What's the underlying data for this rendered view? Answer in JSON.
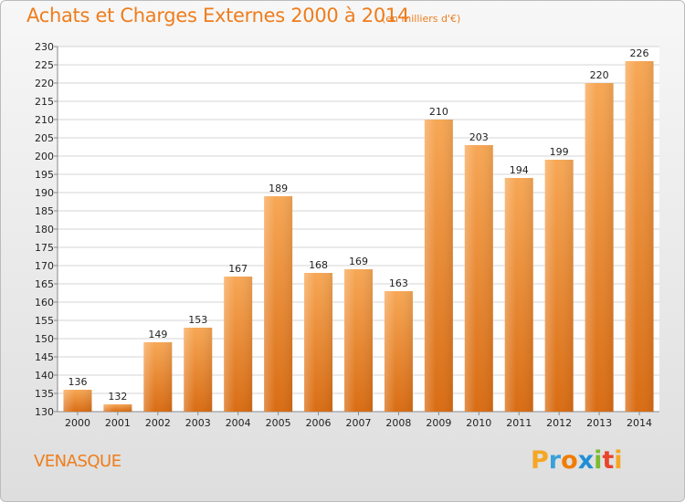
{
  "title": "Achats et Charges Externes 2000 à 2014",
  "subtitle": "(en milliers d'€)",
  "city": "VENASQUE",
  "logo": {
    "letters": [
      "P",
      "r",
      "o",
      "x",
      "i",
      "t",
      "i"
    ],
    "colors": [
      "#f5a623",
      "#3aa0d8",
      "#f07d00",
      "#1f8fd6",
      "#7dbb2f",
      "#e8452c",
      "#f5a623"
    ]
  },
  "colors": {
    "accent": "#ee7d1c",
    "bar_light": "#f7a755",
    "bar_dark": "#e07a1f"
  },
  "chart_data": {
    "type": "bar",
    "categories": [
      "2000",
      "2001",
      "2002",
      "2003",
      "2004",
      "2005",
      "2006",
      "2007",
      "2008",
      "2009",
      "2010",
      "2011",
      "2012",
      "2013",
      "2014"
    ],
    "values": [
      136,
      132,
      149,
      153,
      167,
      189,
      168,
      169,
      163,
      210,
      203,
      194,
      199,
      220,
      226
    ],
    "ylim": [
      130,
      230
    ],
    "yticks": [
      130,
      135,
      140,
      145,
      150,
      155,
      160,
      165,
      170,
      175,
      180,
      185,
      190,
      195,
      200,
      205,
      210,
      215,
      220,
      225,
      230
    ],
    "grid": true,
    "legend": "none"
  }
}
